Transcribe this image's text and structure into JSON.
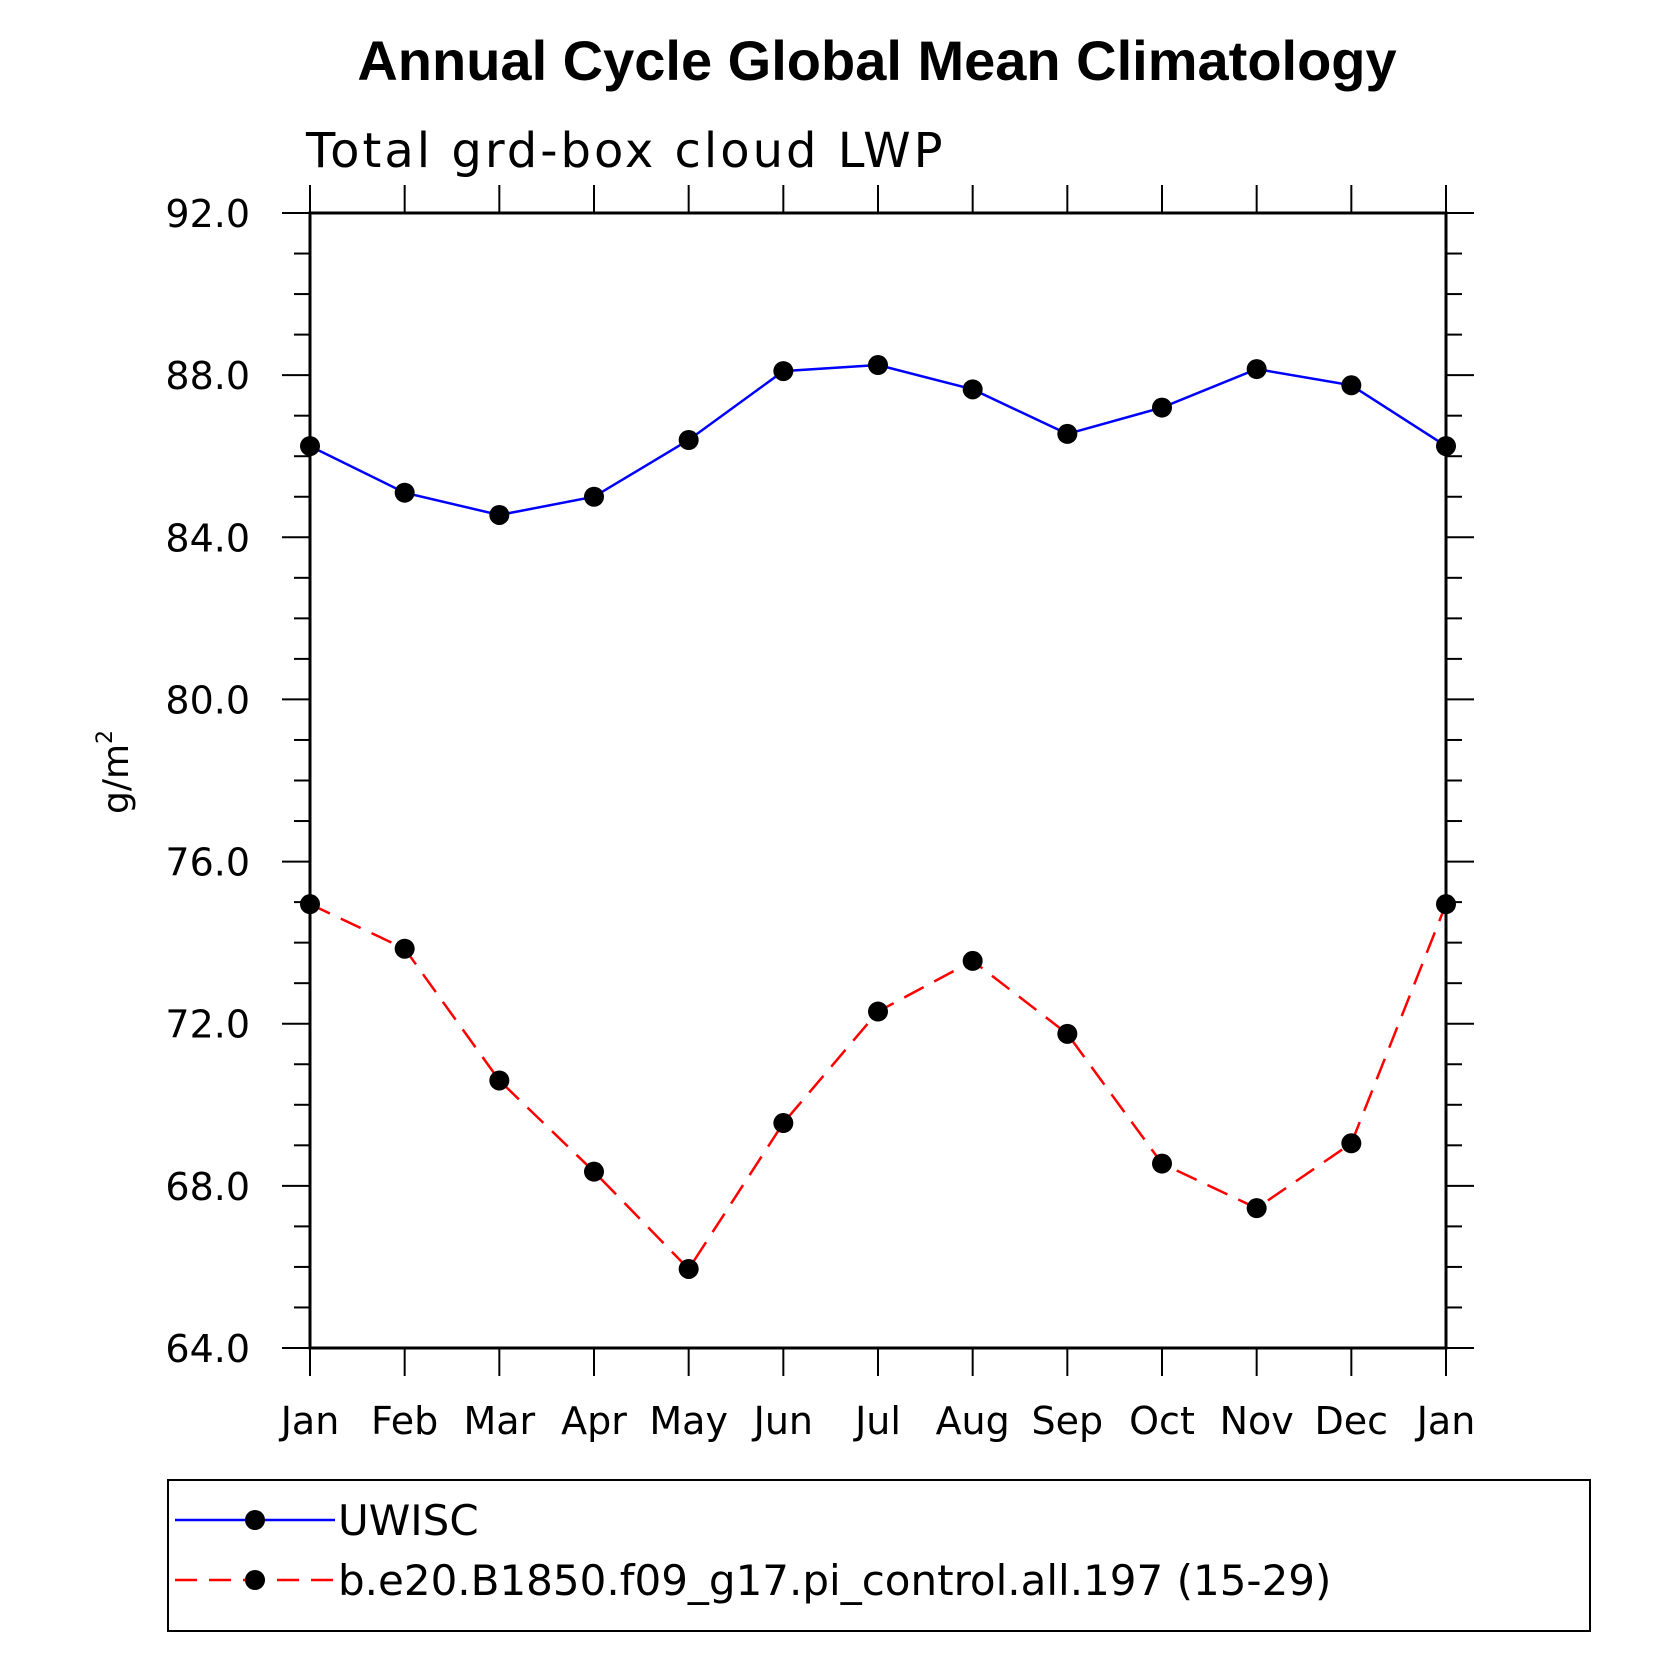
{
  "chart_data": {
    "type": "line",
    "title": "Annual Cycle Global Mean Climatology",
    "subtitle": "Total grd-box cloud LWP",
    "xlabel": "",
    "ylabel": "g/m",
    "ylabel_sup": "2",
    "categories": [
      "Jan",
      "Feb",
      "Mar",
      "Apr",
      "May",
      "Jun",
      "Jul",
      "Aug",
      "Sep",
      "Oct",
      "Nov",
      "Dec",
      "Jan"
    ],
    "ylim": [
      64.0,
      92.0
    ],
    "yticks": [
      "64.0",
      "68.0",
      "72.0",
      "76.0",
      "80.0",
      "84.0",
      "88.0",
      "92.0"
    ],
    "series": [
      {
        "name": "UWISC",
        "color": "#0000ff",
        "style": "solid",
        "values": [
          86.25,
          85.1,
          84.55,
          85.0,
          86.4,
          88.1,
          88.25,
          87.65,
          86.55,
          87.2,
          88.15,
          87.75,
          86.25
        ]
      },
      {
        "name": "b.e20.B1850.f09_g17.pi_control.all.197 (15-29)",
        "color": "#ff0000",
        "style": "dashed",
        "values": [
          74.95,
          73.85,
          70.6,
          68.35,
          65.95,
          69.55,
          72.3,
          73.55,
          71.75,
          68.55,
          67.45,
          69.05,
          74.95
        ]
      }
    ],
    "legend": "bottom",
    "grid": false
  }
}
